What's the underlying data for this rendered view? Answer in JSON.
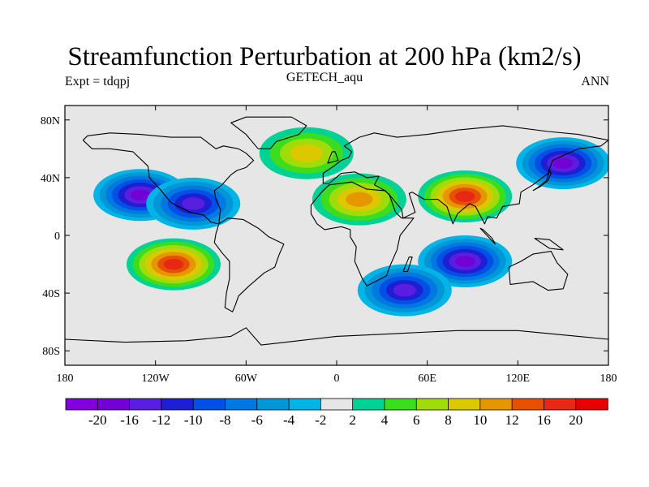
{
  "header": {
    "title": "Streamfunction Perturbation at 200 hPa (km2/s)",
    "subtitle": "GETECH_aqu",
    "left_string": "Expt = tdqpj",
    "right_string": "ANN"
  },
  "map": {
    "projection": "cylindrical-equidistant",
    "longitude_range": [
      -180,
      180
    ],
    "latitude_range": [
      -90,
      90
    ],
    "missing_color": "#e6e6e6",
    "coastline_color": "#000000",
    "x_tick_labels": [
      {
        "lon": -180,
        "label": "180"
      },
      {
        "lon": -120,
        "label": "120W"
      },
      {
        "lon": -60,
        "label": "60W"
      },
      {
        "lon": 0,
        "label": "0"
      },
      {
        "lon": 60,
        "label": "60E"
      },
      {
        "lon": 120,
        "label": "120E"
      },
      {
        "lon": 180,
        "label": "180"
      }
    ],
    "y_tick_labels": [
      {
        "lat": 80,
        "label": "80N"
      },
      {
        "lat": 40,
        "label": "40N"
      },
      {
        "lat": 0,
        "label": "0"
      },
      {
        "lat": -40,
        "label": "40S"
      },
      {
        "lat": -80,
        "label": "80S"
      }
    ],
    "features": [
      {
        "name": "north-pacific-low",
        "lon": -130,
        "lat": 28,
        "value": -18
      },
      {
        "name": "north-atlantic-low",
        "lon": -95,
        "lat": 22,
        "value": -12
      },
      {
        "name": "south-pacific-high",
        "lon": -108,
        "lat": -20,
        "value": 18
      },
      {
        "name": "north-atlantic-high",
        "lon": -20,
        "lat": 57,
        "value": 8
      },
      {
        "name": "asia-high",
        "lon": 85,
        "lat": 27,
        "value": 18
      },
      {
        "name": "europe-high",
        "lon": 15,
        "lat": 25,
        "value": 10
      },
      {
        "name": "indian-ocean-low",
        "lon": 85,
        "lat": -18,
        "value": -18
      },
      {
        "name": "south-atlantic-low",
        "lon": 45,
        "lat": -38,
        "value": -14
      },
      {
        "name": "pacific-north-low",
        "lon": 150,
        "lat": 50,
        "value": -16
      }
    ]
  },
  "colorbar": {
    "colors": [
      "#8200dc",
      "#7300d5",
      "#5a1ee0",
      "#1e1ed2",
      "#0050e6",
      "#0078e1",
      "#0096d7",
      "#00b4e6",
      "#e6e6e6",
      "#00d296",
      "#3cdc1e",
      "#a0dc0a",
      "#dcc800",
      "#e69600",
      "#e65000",
      "#e62814",
      "#e60000"
    ],
    "labels": [
      "-20",
      "-16",
      "-12",
      "-10",
      "-8",
      "-6",
      "-4",
      "-2",
      "2",
      "4",
      "6",
      "8",
      "10",
      "12",
      "16",
      "20"
    ]
  }
}
